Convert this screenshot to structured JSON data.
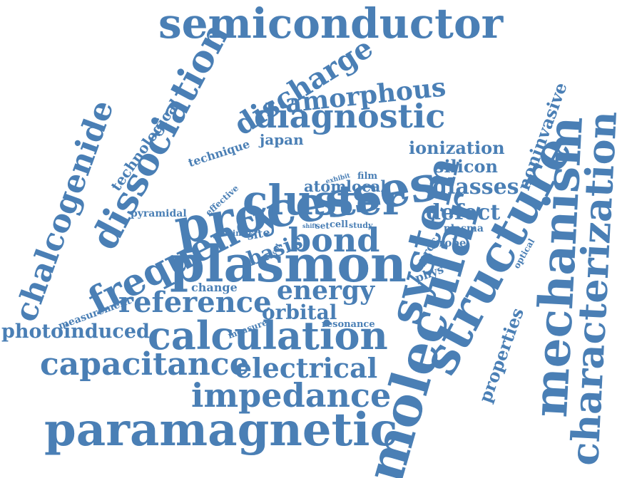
{
  "color": "#4a7fb5",
  "words": [
    {
      "id": "semiconductor",
      "text": "semiconductor"
    },
    {
      "id": "discharge",
      "text": "discharge"
    },
    {
      "id": "amorphous",
      "text": "amorphous"
    },
    {
      "id": "diagnostic",
      "text": "diagnostic"
    },
    {
      "id": "dissociation",
      "text": "dissociation"
    },
    {
      "id": "chalcogenide",
      "text": "chalcogenide"
    },
    {
      "id": "technological",
      "text": "technological"
    },
    {
      "id": "technique",
      "text": "technique"
    },
    {
      "id": "japan",
      "text": "japan"
    },
    {
      "id": "processes",
      "text": "processes"
    },
    {
      "id": "ionization",
      "text": "ionization"
    },
    {
      "id": "silicon",
      "text": "silicon"
    },
    {
      "id": "noninvasive",
      "text": "noninvasive"
    },
    {
      "id": "mechanism",
      "text": "mechanism"
    },
    {
      "id": "characterization",
      "text": "characterization"
    },
    {
      "id": "exhibit",
      "text": "exhibit"
    },
    {
      "id": "film",
      "text": "film"
    },
    {
      "id": "atom",
      "text": "atom"
    },
    {
      "id": "local",
      "text": "local"
    },
    {
      "id": "glasses",
      "text": "glasses"
    },
    {
      "id": "effective",
      "text": "effective"
    },
    {
      "id": "cluster",
      "text": "cluster"
    },
    {
      "id": "system",
      "text": "system"
    },
    {
      "id": "defect",
      "text": "defect"
    },
    {
      "id": "pyramidal",
      "text": "pyramidal"
    },
    {
      "id": "frequency",
      "text": "frequency"
    },
    {
      "id": "intrinsic",
      "text": "intrinsic"
    },
    {
      "id": "site",
      "text": "site"
    },
    {
      "id": "shift",
      "text": "shift"
    },
    {
      "id": "set",
      "text": "set"
    },
    {
      "id": "cell",
      "text": "cell"
    },
    {
      "id": "study",
      "text": "study"
    },
    {
      "id": "plasma",
      "text": "plasma"
    },
    {
      "id": "basis",
      "text": "basis"
    },
    {
      "id": "bond",
      "text": "bond"
    },
    {
      "id": "tool",
      "text": "tool"
    },
    {
      "id": "proc",
      "text": "proc"
    },
    {
      "id": "probe",
      "text": "probe"
    },
    {
      "id": "optical",
      "text": "optical"
    },
    {
      "id": "structure",
      "text": "structure"
    },
    {
      "id": "plasmon",
      "text": "plasmon"
    },
    {
      "id": "phys",
      "text": "phys"
    },
    {
      "id": "measurement",
      "text": "measurement"
    },
    {
      "id": "change",
      "text": "change"
    },
    {
      "id": "energy",
      "text": "energy"
    },
    {
      "id": "reference",
      "text": "reference"
    },
    {
      "id": "orbital",
      "text": "orbital"
    },
    {
      "id": "measure",
      "text": "measure"
    },
    {
      "id": "resonance",
      "text": "resonance"
    },
    {
      "id": "properties",
      "text": "properties"
    },
    {
      "id": "photoinduced",
      "text": "photoinduced"
    },
    {
      "id": "calculation",
      "text": "calculation"
    },
    {
      "id": "molecular",
      "text": "molecular"
    },
    {
      "id": "capacitance",
      "text": "capacitance"
    },
    {
      "id": "electrical",
      "text": "electrical"
    },
    {
      "id": "impedance",
      "text": "impedance"
    },
    {
      "id": "paramagnetic",
      "text": "paramagnetic"
    }
  ]
}
